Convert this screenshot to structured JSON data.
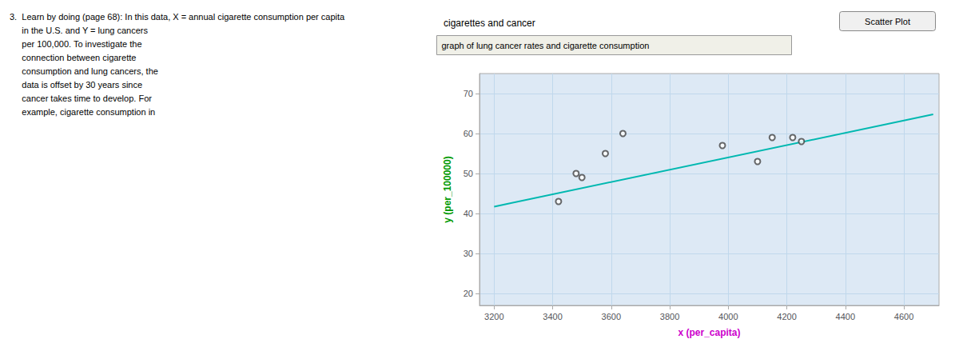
{
  "chart_data": {
    "type": "scatter",
    "title": "cigarettes and cancer",
    "subtitle": "graph of lung cancer rates and cigarette consumption",
    "xlabel": "x (per_capita)",
    "ylabel": "y (per_100000)",
    "annotations": [
      {
        "text": "3.  Learn by doing (page 68): In this data, X = annual cigarette consumption per capita\n     in the U.S. and Y = lung cancers\n     per 100,000. To investigate the\n     connection between cigarette\n     consumption and lung cancers, the\n     data is offset by 30 years since\n     cancer takes time to develop. For\n     example, cigarette consumption in"
      },
      {
        "text": "Scatter Plot"
      }
    ],
    "series": [
      {
        "type": "scatter",
        "color": "#444444",
        "marker": "o",
        "x": [
          3420,
          3480,
          3500,
          3580,
          3640,
          3980,
          4100,
          4150,
          4220,
          4250
        ],
        "values": [
          43,
          50,
          49,
          55,
          60,
          57,
          53,
          59,
          59,
          58
        ]
      },
      {
        "type": "line",
        "color": "#00b8b0",
        "line_style": "solid",
        "x": [
          3200,
          4700
        ],
        "values": [
          41.716,
          64.786
        ]
      }
    ],
    "xlim": [
      3150,
      4720
    ],
    "ylim": [
      17,
      75
    ],
    "xticks": [
      3200,
      3400,
      3600,
      3800,
      4000,
      4200,
      4400,
      4600
    ],
    "yticks": [
      20,
      30,
      40,
      50,
      60,
      70
    ],
    "grid": true
  }
}
